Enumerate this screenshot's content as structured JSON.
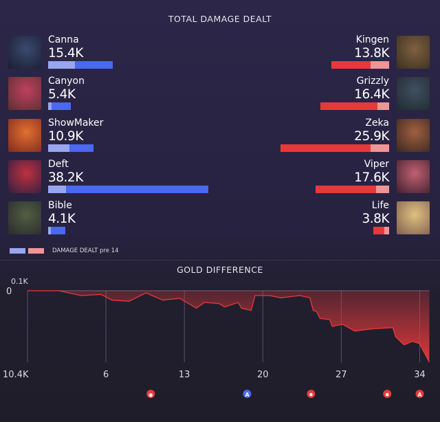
{
  "damage": {
    "title": "TOTAL DAMAGE DEALT",
    "scale_max_k": 38.2,
    "colors": {
      "blue": "#4a68f2",
      "blue_pre14": "#98a6ef",
      "red": "#e8393a",
      "red_pre14": "#f09595"
    },
    "blue_team": [
      {
        "name": "Canna",
        "value": "15.4K",
        "value_k": 15.4,
        "pre14_k": 6.4
      },
      {
        "name": "Canyon",
        "value": "5.4K",
        "value_k": 5.4,
        "pre14_k": 0.8
      },
      {
        "name": "ShowMaker",
        "value": "10.9K",
        "value_k": 10.9,
        "pre14_k": 5.1
      },
      {
        "name": "Deft",
        "value": "38.2K",
        "value_k": 38.2,
        "pre14_k": 4.3
      },
      {
        "name": "Bible",
        "value": "4.1K",
        "value_k": 4.1,
        "pre14_k": 0.7
      }
    ],
    "red_team": [
      {
        "name": "Kingen",
        "value": "13.8K",
        "value_k": 13.8,
        "pre14_k": 4.4
      },
      {
        "name": "Grizzly",
        "value": "16.4K",
        "value_k": 16.4,
        "pre14_k": 2.8
      },
      {
        "name": "Zeka",
        "value": "25.9K",
        "value_k": 25.9,
        "pre14_k": 4.4
      },
      {
        "name": "Viper",
        "value": "17.6K",
        "value_k": 17.6,
        "pre14_k": 3.1
      },
      {
        "name": "Life",
        "value": "3.8K",
        "value_k": 3.8,
        "pre14_k": 1.1
      }
    ],
    "legend_label": "DAMAGE DEALT pre 14"
  },
  "gold": {
    "title": "GOLD DIFFERENCE",
    "y_max_label": "0.1K",
    "y_zero_label": "0",
    "y_min_label": "10.4K",
    "y_range_k": [
      -10.4,
      0.1
    ],
    "x_range_min": [
      -1,
      35
    ],
    "x_ticks": [
      "6",
      "13",
      "20",
      "27",
      "34"
    ],
    "x_tick_values": [
      6,
      13,
      20,
      27,
      34
    ],
    "gridline_values": [
      -1,
      6,
      13,
      20,
      27,
      34
    ],
    "fill_color": "#e8393a",
    "series_k": [
      [
        -1,
        0
      ],
      [
        1.8,
        0
      ],
      [
        3.8,
        -0.7
      ],
      [
        5.56,
        -0.53
      ],
      [
        6.56,
        -1.37
      ],
      [
        8.07,
        -1.53
      ],
      [
        9.57,
        -0.3
      ],
      [
        11.07,
        -1.37
      ],
      [
        12.57,
        -1.1
      ],
      [
        14.07,
        -2.53
      ],
      [
        14.8,
        -1.7
      ],
      [
        16.1,
        -1.87
      ],
      [
        16.6,
        -2.37
      ],
      [
        17.8,
        -1.7
      ],
      [
        18.1,
        -2.53
      ],
      [
        18.96,
        -2.87
      ],
      [
        19.3,
        -0.7
      ],
      [
        20.6,
        -0.7
      ],
      [
        21.6,
        -1.03
      ],
      [
        23.3,
        -0.7
      ],
      [
        24.2,
        -1.03
      ],
      [
        24.5,
        -2.87
      ],
      [
        24.8,
        -3.03
      ],
      [
        25.1,
        -4.03
      ],
      [
        25.97,
        -4.2
      ],
      [
        26.2,
        -5.2
      ],
      [
        27.1,
        -4.87
      ],
      [
        28.2,
        -5.87
      ],
      [
        29.85,
        -5.53
      ],
      [
        31.6,
        -5.37
      ],
      [
        31.85,
        -6.7
      ],
      [
        32.6,
        -7.87
      ],
      [
        33.36,
        -7.37
      ],
      [
        33.97,
        -7.7
      ],
      [
        34.86,
        -10.4
      ]
    ],
    "objectives": [
      {
        "time": 10.0,
        "icon": "herald-icon",
        "team": "red",
        "color": "#e8393a",
        "glyph": "◉"
      },
      {
        "time": 18.6,
        "icon": "atakhan-icon",
        "team": "blue",
        "color": "#4a68f2",
        "glyph": "A"
      },
      {
        "time": 24.3,
        "icon": "dragon-icon",
        "team": "red",
        "color": "#e8393a",
        "glyph": "✹"
      },
      {
        "time": 31.1,
        "icon": "dragon-icon",
        "team": "red",
        "color": "#e8393a",
        "glyph": "✹"
      },
      {
        "time": 34.0,
        "icon": "atakhan-icon",
        "team": "red",
        "color": "#e8393a",
        "glyph": "A"
      }
    ]
  }
}
